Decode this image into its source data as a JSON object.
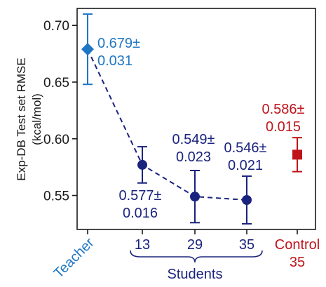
{
  "chart_data": {
    "type": "scatter",
    "ylabel_line1": "Exp-DB Test set RMSE",
    "ylabel_line2": "(kcal/mol)",
    "ylim": [
      0.52,
      0.715
    ],
    "yticks": [
      0.55,
      0.6,
      0.65,
      0.7
    ],
    "ytick_labels": [
      "0.55",
      "0.60",
      "0.65",
      "0.70"
    ],
    "grid": false,
    "colors": {
      "teacher": "#1f77c4",
      "students": "#1a237e",
      "control": "#c0141b",
      "axis": "#1a1a1a"
    },
    "categories": [
      {
        "label": "Teacher",
        "label_line2": "",
        "color": "#1f77c4",
        "rotate": true
      },
      {
        "label": "13",
        "label_line2": "",
        "color": "#1a237e",
        "rotate": false
      },
      {
        "label": "29",
        "label_line2": "",
        "color": "#1a237e",
        "rotate": false
      },
      {
        "label": "35",
        "label_line2": "",
        "color": "#1a237e",
        "rotate": false
      },
      {
        "label": "Control",
        "label_line2": "35",
        "color": "#c0141b",
        "rotate": false
      }
    ],
    "points": [
      {
        "category": "Teacher",
        "y": 0.679,
        "err": 0.031,
        "marker": "diamond",
        "color": "#1f77c4",
        "ann_line1": "0.679±",
        "ann_line2": "0.031"
      },
      {
        "category": "13",
        "y": 0.577,
        "err": 0.016,
        "marker": "circle",
        "color": "#1a237e",
        "ann_line1": "0.577±",
        "ann_line2": "0.016"
      },
      {
        "category": "29",
        "y": 0.549,
        "err": 0.023,
        "marker": "circle",
        "color": "#1a237e",
        "ann_line1": "0.549±",
        "ann_line2": "0.023"
      },
      {
        "category": "35",
        "y": 0.546,
        "err": 0.021,
        "marker": "circle",
        "color": "#1a237e",
        "ann_line1": "0.546±",
        "ann_line2": "0.021"
      },
      {
        "category": "Control 35",
        "y": 0.586,
        "err": 0.015,
        "marker": "square",
        "color": "#c0141b",
        "ann_line1": "0.586±",
        "ann_line2": "0.015"
      }
    ],
    "dashed_line_series": [
      "Teacher",
      "13",
      "29",
      "35"
    ],
    "group_bracket_label": "Students"
  }
}
